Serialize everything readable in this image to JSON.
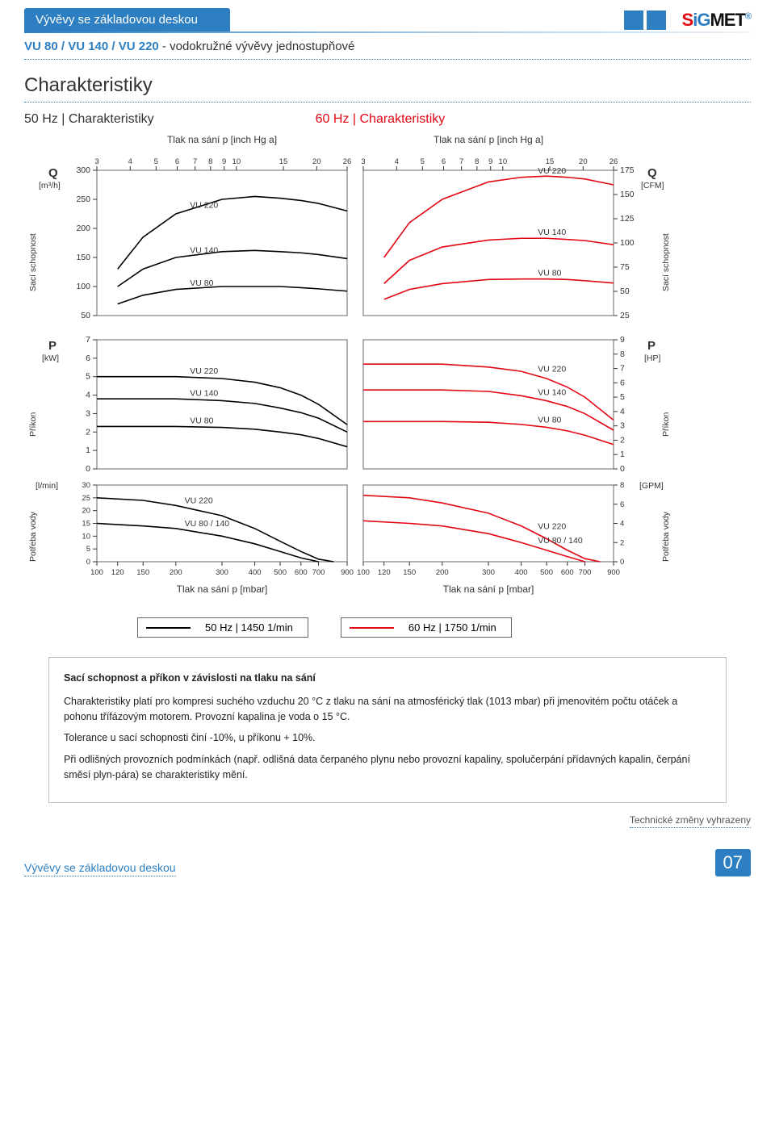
{
  "header": {
    "tab_title": "Vývěvy se základovou deskou",
    "logo_parts": {
      "s": "S",
      "ig": "iG",
      "met": "MET"
    }
  },
  "subtitle": {
    "blue": "VU 80 / VU 140 / VU 220",
    "rest": " - vodokružné vývěvy jednostupňové"
  },
  "section_title": "Charakteristiky",
  "char_labels": {
    "left": "50 Hz | Charakteristiky",
    "right": "60 Hz | Charakteristiky"
  },
  "top_axis_label": "Tlak na sání p [inch Hg a]",
  "bottom_axis_label": "Tlak na sání p [mbar]",
  "y_labels": {
    "Q": "Q",
    "Q_unit_l": "[m³/h]",
    "Q_unit_r": "[CFM]",
    "P": "P",
    "P_unit_l": "[kW]",
    "P_unit_r": "[HP]",
    "W_unit_l": "[l/min]",
    "W_unit_r": "[GPM]",
    "sac": "Sací schopnost",
    "prikon": "Příkon",
    "potreba": "Potřeba vody"
  },
  "legend": {
    "left": "50 Hz | 1450 1/min",
    "right": "60 Hz | 1750 1/min"
  },
  "colors": {
    "blue": "#2d7fc1",
    "red": "#e30613",
    "black": "#000000",
    "grid": "#555555",
    "box_border": "#666666",
    "page_bg": "#ffffff"
  },
  "info": {
    "title": "Sací schopnost a příkon v závislosti na tlaku na sání",
    "p1": "Charakteristiky platí pro kompresi suchého vzduchu 20 °C z tlaku na sání na atmosférický tlak (1013 mbar) při jmenovitém počtu otáček a pohonu třífázovým motorem. Provozní kapalina je voda o 15 °C.",
    "p2": "Tolerance u sací schopnosti činí -10%, u příkonu + 10%.",
    "p3": "Při odlišných provozních podmínkách (např. odlišná data čerpaného plynu nebo provozní kapaliny, spolučerpání přídavných kapalin, čerpání směsí plyn-pára) se charakteristiky mění."
  },
  "footer": {
    "left": "Vývěvy se základovou deskou",
    "note": "Technické změny vyhrazeny",
    "page": "07"
  },
  "charts": {
    "x_ticks_top": [
      3,
      4,
      5,
      6,
      7,
      8,
      9,
      10,
      15,
      20,
      26
    ],
    "x_ticks_bottom": [
      100,
      120,
      150,
      200,
      300,
      400,
      500,
      600,
      700,
      900
    ],
    "panel1": {
      "y_ticks_l": [
        50,
        100,
        150,
        200,
        250,
        300
      ],
      "y_ticks_r": [
        25,
        50,
        75,
        100,
        125,
        150,
        175
      ],
      "ylim_l": [
        50,
        300
      ],
      "ylim_r": [
        25,
        175
      ],
      "curves_50": {
        "VU 220": [
          [
            120,
            130
          ],
          [
            150,
            185
          ],
          [
            200,
            225
          ],
          [
            300,
            250
          ],
          [
            400,
            255
          ],
          [
            500,
            252
          ],
          [
            600,
            248
          ],
          [
            700,
            243
          ],
          [
            900,
            230
          ]
        ],
        "VU 140": [
          [
            120,
            100
          ],
          [
            150,
            130
          ],
          [
            200,
            150
          ],
          [
            300,
            160
          ],
          [
            400,
            162
          ],
          [
            500,
            160
          ],
          [
            600,
            158
          ],
          [
            700,
            155
          ],
          [
            900,
            148
          ]
        ],
        "VU 80": [
          [
            120,
            70
          ],
          [
            150,
            85
          ],
          [
            200,
            95
          ],
          [
            300,
            100
          ],
          [
            400,
            100
          ],
          [
            500,
            100
          ],
          [
            600,
            98
          ],
          [
            700,
            96
          ],
          [
            900,
            92
          ]
        ]
      },
      "curves_60": {
        "VU 220": [
          [
            120,
            150
          ],
          [
            150,
            210
          ],
          [
            200,
            250
          ],
          [
            300,
            280
          ],
          [
            400,
            288
          ],
          [
            500,
            290
          ],
          [
            600,
            288
          ],
          [
            700,
            285
          ],
          [
            900,
            275
          ]
        ],
        "VU 140": [
          [
            120,
            105
          ],
          [
            150,
            145
          ],
          [
            200,
            168
          ],
          [
            300,
            180
          ],
          [
            400,
            183
          ],
          [
            500,
            183
          ],
          [
            600,
            181
          ],
          [
            700,
            179
          ],
          [
            900,
            172
          ]
        ],
        "VU 80": [
          [
            120,
            78
          ],
          [
            150,
            95
          ],
          [
            200,
            105
          ],
          [
            300,
            112
          ],
          [
            400,
            113
          ],
          [
            500,
            113
          ],
          [
            600,
            112
          ],
          [
            700,
            110
          ],
          [
            900,
            106
          ]
        ]
      }
    },
    "panel2": {
      "y_ticks_l": [
        0,
        1,
        2,
        3,
        4,
        5,
        6,
        7
      ],
      "y_ticks_r": [
        0,
        1,
        2,
        3,
        4,
        5,
        6,
        7,
        8,
        9
      ],
      "ylim_l": [
        0,
        7
      ],
      "ylim_r": [
        0,
        9
      ],
      "curves_50": {
        "VU 220": [
          [
            100,
            5.0
          ],
          [
            150,
            5.0
          ],
          [
            200,
            5.0
          ],
          [
            300,
            4.9
          ],
          [
            400,
            4.7
          ],
          [
            500,
            4.4
          ],
          [
            600,
            4.0
          ],
          [
            700,
            3.5
          ],
          [
            900,
            2.4
          ]
        ],
        "VU 140": [
          [
            100,
            3.8
          ],
          [
            150,
            3.8
          ],
          [
            200,
            3.8
          ],
          [
            300,
            3.7
          ],
          [
            400,
            3.55
          ],
          [
            500,
            3.3
          ],
          [
            600,
            3.05
          ],
          [
            700,
            2.75
          ],
          [
            900,
            2.0
          ]
        ],
        "VU 80": [
          [
            100,
            2.3
          ],
          [
            150,
            2.3
          ],
          [
            200,
            2.3
          ],
          [
            300,
            2.25
          ],
          [
            400,
            2.15
          ],
          [
            500,
            2.0
          ],
          [
            600,
            1.85
          ],
          [
            700,
            1.65
          ],
          [
            900,
            1.2
          ]
        ]
      },
      "curves_60": {
        "VU 220": [
          [
            100,
            7.3
          ],
          [
            150,
            7.3
          ],
          [
            200,
            7.3
          ],
          [
            300,
            7.1
          ],
          [
            400,
            6.8
          ],
          [
            500,
            6.3
          ],
          [
            600,
            5.7
          ],
          [
            700,
            5.0
          ],
          [
            900,
            3.4
          ]
        ],
        "VU 140": [
          [
            100,
            5.5
          ],
          [
            150,
            5.5
          ],
          [
            200,
            5.5
          ],
          [
            300,
            5.4
          ],
          [
            400,
            5.1
          ],
          [
            500,
            4.75
          ],
          [
            600,
            4.35
          ],
          [
            700,
            3.85
          ],
          [
            900,
            2.7
          ]
        ],
        "VU 80": [
          [
            100,
            3.3
          ],
          [
            150,
            3.3
          ],
          [
            200,
            3.3
          ],
          [
            300,
            3.25
          ],
          [
            400,
            3.1
          ],
          [
            500,
            2.9
          ],
          [
            600,
            2.65
          ],
          [
            700,
            2.35
          ],
          [
            900,
            1.7
          ]
        ]
      },
      "r_scale": 1.286
    },
    "panel3": {
      "y_ticks_l": [
        0,
        5,
        10,
        15,
        20,
        25,
        30
      ],
      "y_ticks_r": [
        0,
        2,
        4,
        6,
        8
      ],
      "ylim_l": [
        0,
        30
      ],
      "ylim_r": [
        0,
        8
      ],
      "curves_50": {
        "VU 220": [
          [
            100,
            25
          ],
          [
            150,
            24
          ],
          [
            200,
            22
          ],
          [
            300,
            18
          ],
          [
            400,
            13
          ],
          [
            500,
            8
          ],
          [
            600,
            4
          ],
          [
            700,
            1
          ],
          [
            800,
            0
          ]
        ],
        "VU 80 / 140": [
          [
            100,
            15
          ],
          [
            150,
            14
          ],
          [
            200,
            13
          ],
          [
            300,
            10
          ],
          [
            400,
            7
          ],
          [
            500,
            4
          ],
          [
            600,
            1.5
          ],
          [
            700,
            0
          ]
        ]
      },
      "curves_60": {
        "VU 220": [
          [
            100,
            26
          ],
          [
            150,
            25
          ],
          [
            200,
            23
          ],
          [
            300,
            19
          ],
          [
            400,
            14
          ],
          [
            500,
            9
          ],
          [
            600,
            4.5
          ],
          [
            700,
            1.2
          ],
          [
            800,
            0
          ]
        ],
        "VU 80 / 140": [
          [
            100,
            16
          ],
          [
            150,
            15
          ],
          [
            200,
            14
          ],
          [
            300,
            11
          ],
          [
            400,
            7.5
          ],
          [
            500,
            4.5
          ],
          [
            600,
            2
          ],
          [
            700,
            0
          ]
        ]
      }
    }
  }
}
